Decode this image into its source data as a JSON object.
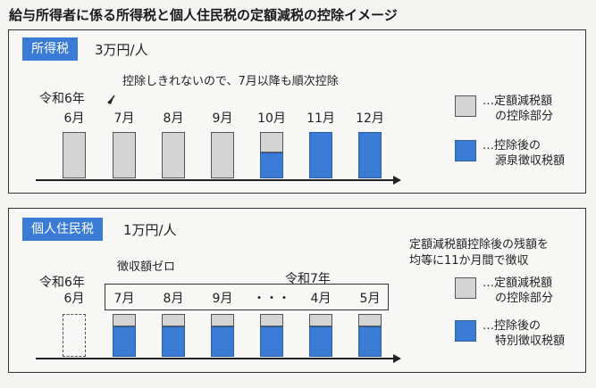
{
  "title": "給与所得者に係る所得税と個人住民税の定額減税の控除イメージ",
  "income_tax": {
    "tag": "所得税",
    "amount": "3万円/人",
    "era": "令和6年",
    "note": "控除しきれないので、7月以降も順次控除",
    "months": [
      "6月",
      "7月",
      "8月",
      "9月",
      "10月",
      "11月",
      "12月"
    ],
    "bars": [
      {
        "deduction": 1.0,
        "withholding": 0.0
      },
      {
        "deduction": 1.0,
        "withholding": 0.0
      },
      {
        "deduction": 1.0,
        "withholding": 0.0
      },
      {
        "deduction": 1.0,
        "withholding": 0.0
      },
      {
        "deduction": 0.45,
        "withholding": 0.55
      },
      {
        "deduction": 0.0,
        "withholding": 1.0
      },
      {
        "deduction": 0.0,
        "withholding": 1.0
      }
    ],
    "legend": [
      {
        "line1": "…定額減税額",
        "line2": "の控除部分",
        "color": "#d4d4d4"
      },
      {
        "line1": "…控除後の",
        "line2": "源泉徴収税額",
        "color": "#3a7bd5"
      }
    ]
  },
  "resident_tax": {
    "tag": "個人住民税",
    "amount": "1万円/人",
    "era": "令和6年",
    "era2": "令和7年",
    "zero_note": "徴収額ゼロ",
    "note_line1": "定額減税額控除後の残額を",
    "note_line2": "均等に11か月間で徴収",
    "months": [
      "6月",
      "7月",
      "8月",
      "9月",
      "・・・",
      "4月",
      "5月"
    ],
    "bars": [
      {
        "deduction": 0.0,
        "withholding": 0.0,
        "empty": true
      },
      {
        "deduction": 0.3,
        "withholding": 0.7
      },
      {
        "deduction": 0.3,
        "withholding": 0.7
      },
      {
        "deduction": 0.3,
        "withholding": 0.7
      },
      {
        "deduction": 0.3,
        "withholding": 0.7
      },
      {
        "deduction": 0.3,
        "withholding": 0.7
      },
      {
        "deduction": 0.3,
        "withholding": 0.7
      }
    ],
    "legend": [
      {
        "line1": "…定額減税額",
        "line2": "の控除部分",
        "color": "#d4d4d4"
      },
      {
        "line1": "…控除後の",
        "line2": "特別徴収税額",
        "color": "#3a7bd5"
      }
    ]
  }
}
